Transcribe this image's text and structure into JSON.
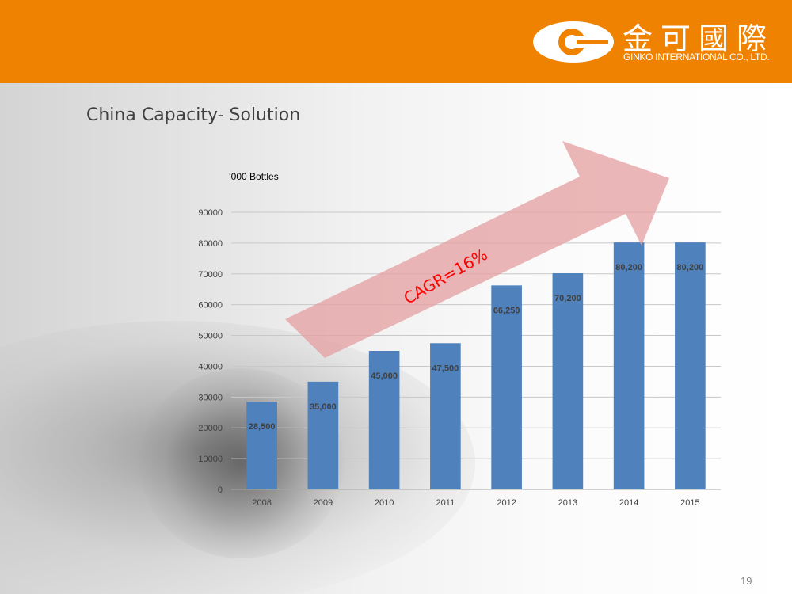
{
  "header": {
    "logo_cn": "金可國際",
    "logo_en": "GINKO INTERNATIONAL CO., LTD."
  },
  "slide": {
    "title": "China Capacity- Solution",
    "page_number": "19"
  },
  "colors": {
    "header_bg": "#ef8200",
    "bar": "#4f81bd",
    "arrow": "#e6a1a3",
    "cagr_text": "#ff0000"
  },
  "chart_data": {
    "type": "bar",
    "unit_label": "‘000 Bottles",
    "categories": [
      "2008",
      "2009",
      "2010",
      "2011",
      "2012",
      "2013",
      "2014",
      "2015"
    ],
    "values": [
      28500,
      35000,
      45000,
      47500,
      66250,
      70200,
      80200,
      80200
    ],
    "value_labels": [
      "28,500",
      "35,000",
      "45,000",
      "47,500",
      "66,250",
      "70,200",
      "80,200",
      "80,200"
    ],
    "ylim": [
      0,
      90000
    ],
    "yticks": [
      0,
      10000,
      20000,
      30000,
      40000,
      50000,
      60000,
      70000,
      80000,
      90000
    ],
    "grid": true,
    "annotation": "CAGR=16%"
  }
}
